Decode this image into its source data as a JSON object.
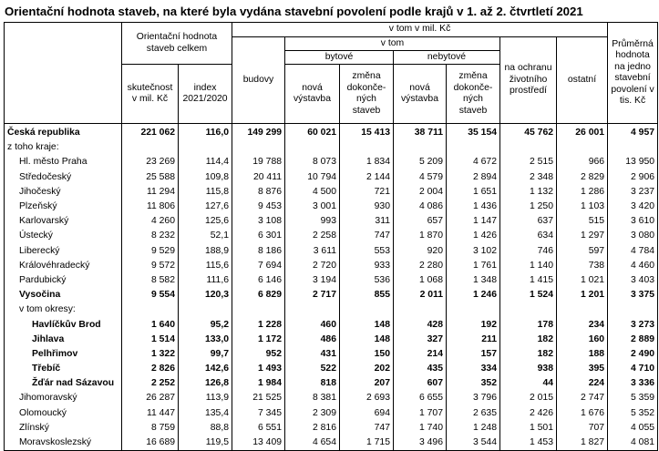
{
  "title": "Orientační hodnota staveb, na které byla vydána stavební povolení podle krajů v 1. až 2. čtvrtletí 2021",
  "header": {
    "group_total": "Orientační hodnota staveb celkem",
    "group_mil": "v tom v mil. Kč",
    "group_vtom": "v tom",
    "col_actual": "skutečnost v mil. Kč",
    "col_index": "index 2021/2020",
    "col_budovy": "budovy",
    "group_bytove": "bytové",
    "group_nebytove": "nebytové",
    "col_nova": "nová výstavba",
    "col_zmena": "změna dokonče-ných staveb",
    "col_env": "na ochranu životního prostředí",
    "col_ostatni": "ostatní",
    "col_avg": "Průměrná hodnota na jedno stavební povolení v tis. Kč"
  },
  "rows": [
    {
      "name": "Česká republika",
      "style": "total",
      "values": [
        "221 062",
        "116,0",
        "149 299",
        "60 021",
        "15 413",
        "38 711",
        "35 154",
        "45 762",
        "26 001",
        "4 957"
      ]
    },
    {
      "name": "z toho kraje:",
      "style": "label",
      "values": [
        "",
        "",
        "",
        "",
        "",
        "",
        "",
        "",
        "",
        ""
      ]
    },
    {
      "name": "Hl. město Praha",
      "style": "region",
      "values": [
        "23 269",
        "114,4",
        "19 788",
        "8 073",
        "1 834",
        "5 209",
        "4 672",
        "2 515",
        "966",
        "13 950"
      ]
    },
    {
      "name": "Středočeský",
      "style": "region",
      "values": [
        "25 588",
        "109,8",
        "20 411",
        "10 794",
        "2 144",
        "4 579",
        "2 894",
        "2 348",
        "2 829",
        "2 906"
      ]
    },
    {
      "name": "Jihočeský",
      "style": "region",
      "values": [
        "11 294",
        "115,8",
        "8 876",
        "4 500",
        "721",
        "2 004",
        "1 651",
        "1 132",
        "1 286",
        "3 237"
      ]
    },
    {
      "name": "Plzeňský",
      "style": "region",
      "values": [
        "11 806",
        "127,6",
        "9 453",
        "3 001",
        "930",
        "4 086",
        "1 436",
        "1 250",
        "1 103",
        "3 420"
      ]
    },
    {
      "name": "Karlovarský",
      "style": "region",
      "values": [
        "4 260",
        "125,6",
        "3 108",
        "993",
        "311",
        "657",
        "1 147",
        "637",
        "515",
        "3 610"
      ]
    },
    {
      "name": "Ústecký",
      "style": "region",
      "values": [
        "8 232",
        "52,1",
        "6 301",
        "2 258",
        "747",
        "1 870",
        "1 426",
        "634",
        "1 297",
        "3 080"
      ]
    },
    {
      "name": "Liberecký",
      "style": "region",
      "values": [
        "9 529",
        "188,9",
        "8 186",
        "3 611",
        "553",
        "920",
        "3 102",
        "746",
        "597",
        "4 784"
      ]
    },
    {
      "name": "Královéhradecký",
      "style": "region",
      "values": [
        "9 572",
        "115,6",
        "7 694",
        "2 720",
        "933",
        "2 280",
        "1 761",
        "1 140",
        "738",
        "4 460"
      ]
    },
    {
      "name": "Pardubický",
      "style": "region",
      "values": [
        "8 582",
        "111,6",
        "6 146",
        "3 194",
        "536",
        "1 068",
        "1 348",
        "1 415",
        "1 021",
        "3 403"
      ]
    },
    {
      "name": "Vysočina",
      "style": "region-bold",
      "values": [
        "9 554",
        "120,3",
        "6 829",
        "2 717",
        "855",
        "2 011",
        "1 246",
        "1 524",
        "1 201",
        "3 375"
      ]
    },
    {
      "name": "v tom okresy:",
      "style": "sublabel",
      "values": [
        "",
        "",
        "",
        "",
        "",
        "",
        "",
        "",
        "",
        ""
      ]
    },
    {
      "name": "Havlíčkův Brod",
      "style": "district",
      "values": [
        "1 640",
        "95,2",
        "1 228",
        "460",
        "148",
        "428",
        "192",
        "178",
        "234",
        "3 273"
      ]
    },
    {
      "name": "Jihlava",
      "style": "district",
      "values": [
        "1 514",
        "133,0",
        "1 172",
        "486",
        "148",
        "327",
        "211",
        "182",
        "160",
        "2 889"
      ]
    },
    {
      "name": "Pelhřimov",
      "style": "district",
      "values": [
        "1 322",
        "99,7",
        "952",
        "431",
        "150",
        "214",
        "157",
        "182",
        "188",
        "2 490"
      ]
    },
    {
      "name": "Třebíč",
      "style": "district",
      "values": [
        "2 826",
        "142,6",
        "1 493",
        "522",
        "202",
        "435",
        "334",
        "938",
        "395",
        "4 710"
      ]
    },
    {
      "name": "Žďár nad Sázavou",
      "style": "district",
      "values": [
        "2 252",
        "126,8",
        "1 984",
        "818",
        "207",
        "607",
        "352",
        "44",
        "224",
        "3 336"
      ]
    },
    {
      "name": "Jihomoravský",
      "style": "region",
      "values": [
        "26 287",
        "113,9",
        "21 525",
        "8 381",
        "2 693",
        "6 655",
        "3 796",
        "2 015",
        "2 747",
        "5 359"
      ]
    },
    {
      "name": "Olomoucký",
      "style": "region",
      "values": [
        "11 447",
        "135,4",
        "7 345",
        "2 309",
        "694",
        "1 707",
        "2 635",
        "2 426",
        "1 676",
        "5 352"
      ]
    },
    {
      "name": "Zlínský",
      "style": "region",
      "values": [
        "8 759",
        "88,8",
        "6 551",
        "2 816",
        "747",
        "1 740",
        "1 248",
        "1 501",
        "707",
        "4 055"
      ]
    },
    {
      "name": "Moravskoslezský",
      "style": "region",
      "values": [
        "16 689",
        "119,5",
        "13 409",
        "4 654",
        "1 715",
        "3 496",
        "3 544",
        "1 453",
        "1 827",
        "4 081"
      ]
    }
  ]
}
